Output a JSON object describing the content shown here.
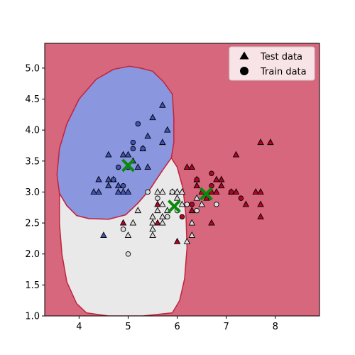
{
  "chart_data": {
    "type": "scatter",
    "title": "",
    "xlabel": "",
    "ylabel": "",
    "xlim": [
      3.3,
      8.9
    ],
    "ylim": [
      1.0,
      5.4
    ],
    "x_ticks": [
      4,
      5,
      6,
      7,
      8
    ],
    "y_ticks": [
      1.0,
      1.5,
      2.0,
      2.5,
      3.0,
      3.5,
      4.0,
      4.5,
      5.0
    ],
    "grid": false,
    "legend_position": "top-right",
    "legend": [
      {
        "label": "Test data",
        "marker": "triangle"
      },
      {
        "label": "Train data",
        "marker": "circle"
      }
    ],
    "colors": {
      "class_blue": "#3f54b5",
      "class_white": "#dcdcdc",
      "class_red": "#b40426",
      "region_blue": "#8a96dd",
      "region_white": "#e9e9e9",
      "region_red": "#d6677d",
      "boundary": "#c0243e",
      "centroid": "#0a8a0a"
    },
    "decision_regions": [
      {
        "class": "blue",
        "polygon": [
          [
            5.02,
            5.03
          ],
          [
            5.25,
            5.0
          ],
          [
            5.5,
            4.95
          ],
          [
            5.72,
            4.78
          ],
          [
            5.9,
            4.58
          ],
          [
            5.93,
            4.2
          ],
          [
            5.93,
            3.8
          ],
          [
            5.88,
            3.55
          ],
          [
            5.7,
            3.35
          ],
          [
            5.45,
            3.05
          ],
          [
            5.2,
            2.82
          ],
          [
            4.95,
            2.63
          ],
          [
            4.6,
            2.56
          ],
          [
            4.2,
            2.57
          ],
          [
            3.95,
            2.62
          ],
          [
            3.75,
            2.78
          ],
          [
            3.6,
            2.98
          ],
          [
            3.55,
            3.28
          ],
          [
            3.6,
            3.7
          ],
          [
            3.75,
            4.1
          ],
          [
            4.0,
            4.5
          ],
          [
            4.35,
            4.82
          ],
          [
            4.7,
            4.98
          ]
        ]
      },
      {
        "class": "white",
        "polygon": [
          [
            3.6,
            2.98
          ],
          [
            3.75,
            2.78
          ],
          [
            3.95,
            2.62
          ],
          [
            4.2,
            2.57
          ],
          [
            4.6,
            2.56
          ],
          [
            4.95,
            2.63
          ],
          [
            5.2,
            2.82
          ],
          [
            5.45,
            3.05
          ],
          [
            5.7,
            3.35
          ],
          [
            5.88,
            3.55
          ],
          [
            6.0,
            3.4
          ],
          [
            6.12,
            3.05
          ],
          [
            6.18,
            2.6
          ],
          [
            6.2,
            2.1
          ],
          [
            6.15,
            1.6
          ],
          [
            6.05,
            1.25
          ],
          [
            5.9,
            1.05
          ],
          [
            5.3,
            1.0
          ],
          [
            4.6,
            1.0
          ],
          [
            4.15,
            1.05
          ],
          [
            3.95,
            1.2
          ],
          [
            3.75,
            1.55
          ],
          [
            3.65,
            2.0
          ],
          [
            3.6,
            2.5
          ]
        ]
      }
    ],
    "centroids": [
      {
        "x": 5.0,
        "y": 3.43
      },
      {
        "x": 5.94,
        "y": 2.77
      },
      {
        "x": 6.59,
        "y": 2.97
      }
    ],
    "series": [
      {
        "name": "Test data",
        "marker": "triangle",
        "points": [
          {
            "x": 4.3,
            "y": 3.0,
            "class": "blue"
          },
          {
            "x": 4.4,
            "y": 3.0,
            "class": "blue"
          },
          {
            "x": 4.4,
            "y": 3.2,
            "class": "blue"
          },
          {
            "x": 4.5,
            "y": 2.3,
            "class": "blue"
          },
          {
            "x": 4.6,
            "y": 3.1,
            "class": "blue"
          },
          {
            "x": 4.6,
            "y": 3.2,
            "class": "blue"
          },
          {
            "x": 4.6,
            "y": 3.6,
            "class": "blue"
          },
          {
            "x": 4.7,
            "y": 3.2,
            "class": "blue"
          },
          {
            "x": 4.8,
            "y": 3.0,
            "class": "blue"
          },
          {
            "x": 4.8,
            "y": 3.1,
            "class": "blue"
          },
          {
            "x": 4.9,
            "y": 3.0,
            "class": "blue"
          },
          {
            "x": 4.9,
            "y": 3.6,
            "class": "blue"
          },
          {
            "x": 5.0,
            "y": 3.0,
            "class": "blue"
          },
          {
            "x": 5.0,
            "y": 3.6,
            "class": "blue"
          },
          {
            "x": 5.1,
            "y": 3.5,
            "class": "blue"
          },
          {
            "x": 5.2,
            "y": 3.4,
            "class": "blue"
          },
          {
            "x": 5.3,
            "y": 3.7,
            "class": "blue"
          },
          {
            "x": 5.4,
            "y": 3.4,
            "class": "blue"
          },
          {
            "x": 5.4,
            "y": 3.9,
            "class": "blue"
          },
          {
            "x": 5.5,
            "y": 4.2,
            "class": "blue"
          },
          {
            "x": 5.7,
            "y": 3.8,
            "class": "blue"
          },
          {
            "x": 5.7,
            "y": 4.4,
            "class": "blue"
          },
          {
            "x": 5.8,
            "y": 4.0,
            "class": "blue"
          },
          {
            "x": 4.9,
            "y": 2.5,
            "class": "red"
          },
          {
            "x": 5.0,
            "y": 2.3,
            "class": "white"
          },
          {
            "x": 5.1,
            "y": 2.5,
            "class": "white"
          },
          {
            "x": 5.2,
            "y": 2.7,
            "class": "white"
          },
          {
            "x": 5.5,
            "y": 2.3,
            "class": "white"
          },
          {
            "x": 5.5,
            "y": 2.4,
            "class": "white"
          },
          {
            "x": 5.5,
            "y": 2.5,
            "class": "white"
          },
          {
            "x": 5.5,
            "y": 2.6,
            "class": "white"
          },
          {
            "x": 5.6,
            "y": 2.5,
            "class": "red"
          },
          {
            "x": 5.6,
            "y": 2.7,
            "class": "white"
          },
          {
            "x": 5.6,
            "y": 2.8,
            "class": "red"
          },
          {
            "x": 5.6,
            "y": 3.0,
            "class": "white"
          },
          {
            "x": 5.7,
            "y": 2.5,
            "class": "white"
          },
          {
            "x": 5.7,
            "y": 2.6,
            "class": "white"
          },
          {
            "x": 5.7,
            "y": 2.8,
            "class": "white"
          },
          {
            "x": 5.7,
            "y": 3.0,
            "class": "white"
          },
          {
            "x": 5.8,
            "y": 2.7,
            "class": "white"
          },
          {
            "x": 5.9,
            "y": 3.0,
            "class": "white"
          },
          {
            "x": 6.0,
            "y": 2.2,
            "class": "red"
          },
          {
            "x": 6.0,
            "y": 2.9,
            "class": "white"
          },
          {
            "x": 6.0,
            "y": 3.0,
            "class": "white"
          },
          {
            "x": 6.1,
            "y": 2.8,
            "class": "white"
          },
          {
            "x": 6.1,
            "y": 3.0,
            "class": "white"
          },
          {
            "x": 6.2,
            "y": 2.2,
            "class": "white"
          },
          {
            "x": 6.2,
            "y": 3.4,
            "class": "red"
          },
          {
            "x": 6.3,
            "y": 2.3,
            "class": "white"
          },
          {
            "x": 6.3,
            "y": 2.5,
            "class": "white"
          },
          {
            "x": 6.3,
            "y": 2.7,
            "class": "red"
          },
          {
            "x": 6.3,
            "y": 3.4,
            "class": "red"
          },
          {
            "x": 6.4,
            "y": 2.9,
            "class": "white"
          },
          {
            "x": 6.4,
            "y": 3.1,
            "class": "red"
          },
          {
            "x": 6.4,
            "y": 3.2,
            "class": "red"
          },
          {
            "x": 6.5,
            "y": 2.8,
            "class": "white"
          },
          {
            "x": 6.5,
            "y": 3.0,
            "class": "red"
          },
          {
            "x": 6.6,
            "y": 2.9,
            "class": "red"
          },
          {
            "x": 6.7,
            "y": 2.5,
            "class": "red"
          },
          {
            "x": 6.7,
            "y": 3.0,
            "class": "red"
          },
          {
            "x": 6.8,
            "y": 3.0,
            "class": "red"
          },
          {
            "x": 6.8,
            "y": 3.2,
            "class": "red"
          },
          {
            "x": 6.9,
            "y": 3.1,
            "class": "red"
          },
          {
            "x": 6.9,
            "y": 3.2,
            "class": "red"
          },
          {
            "x": 7.1,
            "y": 3.0,
            "class": "red"
          },
          {
            "x": 7.2,
            "y": 3.0,
            "class": "red"
          },
          {
            "x": 7.2,
            "y": 3.6,
            "class": "red"
          },
          {
            "x": 7.4,
            "y": 2.8,
            "class": "red"
          },
          {
            "x": 7.6,
            "y": 3.0,
            "class": "red"
          },
          {
            "x": 7.7,
            "y": 2.6,
            "class": "red"
          },
          {
            "x": 7.7,
            "y": 2.8,
            "class": "red"
          },
          {
            "x": 7.7,
            "y": 3.0,
            "class": "red"
          },
          {
            "x": 7.7,
            "y": 3.8,
            "class": "red"
          },
          {
            "x": 7.9,
            "y": 3.8,
            "class": "red"
          }
        ]
      },
      {
        "name": "Train data",
        "marker": "circle",
        "points": [
          {
            "x": 4.7,
            "y": 3.2,
            "class": "blue"
          },
          {
            "x": 4.8,
            "y": 3.4,
            "class": "blue"
          },
          {
            "x": 4.9,
            "y": 3.1,
            "class": "blue"
          },
          {
            "x": 5.0,
            "y": 3.4,
            "class": "blue"
          },
          {
            "x": 5.1,
            "y": 3.7,
            "class": "blue"
          },
          {
            "x": 5.1,
            "y": 3.8,
            "class": "blue"
          },
          {
            "x": 5.2,
            "y": 4.1,
            "class": "blue"
          },
          {
            "x": 5.3,
            "y": 3.7,
            "class": "blue"
          },
          {
            "x": 4.9,
            "y": 2.4,
            "class": "white"
          },
          {
            "x": 5.0,
            "y": 2.0,
            "class": "white"
          },
          {
            "x": 5.4,
            "y": 3.0,
            "class": "white"
          },
          {
            "x": 5.6,
            "y": 2.9,
            "class": "white"
          },
          {
            "x": 5.8,
            "y": 2.6,
            "class": "white"
          },
          {
            "x": 5.9,
            "y": 3.0,
            "class": "white"
          },
          {
            "x": 6.0,
            "y": 2.7,
            "class": "white"
          },
          {
            "x": 6.1,
            "y": 2.6,
            "class": "red"
          },
          {
            "x": 6.2,
            "y": 2.8,
            "class": "white"
          },
          {
            "x": 6.3,
            "y": 2.8,
            "class": "red"
          },
          {
            "x": 6.4,
            "y": 2.7,
            "class": "white"
          },
          {
            "x": 6.4,
            "y": 3.2,
            "class": "red"
          },
          {
            "x": 6.7,
            "y": 3.1,
            "class": "red"
          },
          {
            "x": 6.7,
            "y": 3.3,
            "class": "red"
          },
          {
            "x": 6.8,
            "y": 2.8,
            "class": "white"
          },
          {
            "x": 7.1,
            "y": 3.0,
            "class": "red"
          },
          {
            "x": 7.3,
            "y": 2.9,
            "class": "red"
          }
        ]
      }
    ]
  }
}
